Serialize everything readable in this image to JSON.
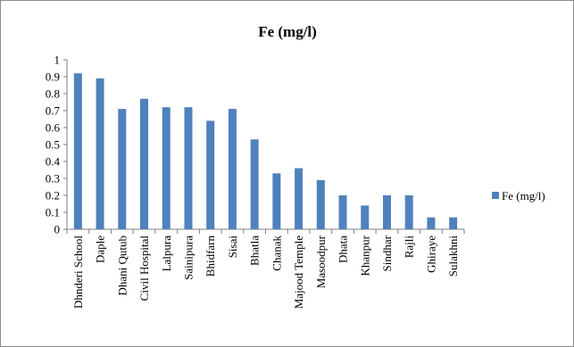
{
  "chart_data": {
    "type": "bar",
    "title": "Fe (mg/l)",
    "xlabel": "",
    "ylabel": "",
    "ylim": [
      0,
      1
    ],
    "yticks": [
      0,
      0.1,
      0.2,
      0.3,
      0.4,
      0.5,
      0.6,
      0.7,
      0.8,
      0.9,
      1
    ],
    "ytick_labels": [
      "0",
      "0.1",
      "0.2",
      "0.3",
      "0.4",
      "0.5",
      "0.6",
      "0.7",
      "0.8",
      "0.9",
      "1"
    ],
    "grid": false,
    "legend_position": "right",
    "categories": [
      "Dhnderi School",
      "Daple",
      "Dhani Qutub",
      "Civil Hospital",
      "Lalpura",
      "Sainipura",
      "Bhidfarn",
      "Sisai",
      "Bhatla",
      "Chanak",
      "Majood Temple",
      "Masoodpur",
      "Dhata",
      "Khanpur",
      "Sindhar",
      "Rajli",
      "Ghiraye",
      "Sulakhni"
    ],
    "series": [
      {
        "name": "Fe (mg/l)",
        "color": "#4f81bd",
        "values": [
          0.92,
          0.89,
          0.71,
          0.77,
          0.72,
          0.72,
          0.64,
          0.71,
          0.53,
          0.33,
          0.36,
          0.29,
          0.2,
          0.14,
          0.2,
          0.2,
          0.07,
          0.07
        ]
      }
    ]
  }
}
